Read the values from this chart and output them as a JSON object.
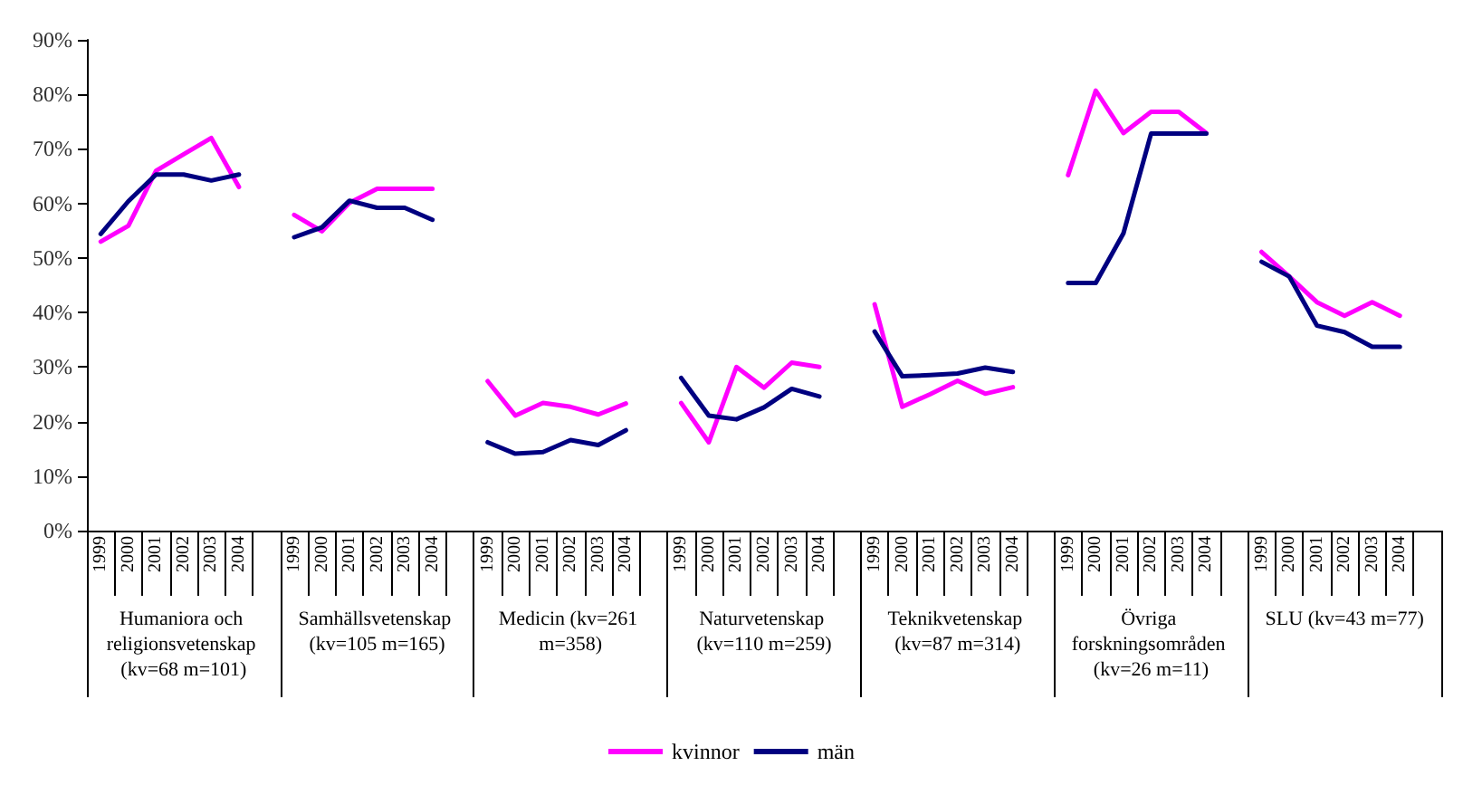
{
  "chart_data": {
    "type": "line",
    "categories": [
      "1999",
      "2000",
      "2001",
      "2002",
      "2003",
      "2004",
      null,
      "1999",
      "2000",
      "2001",
      "2002",
      "2003",
      "2004",
      null,
      "1999",
      "2000",
      "2001",
      "2002",
      "2003",
      "2004",
      null,
      "1999",
      "2000",
      "2001",
      "2002",
      "2003",
      "2004",
      null,
      "1999",
      "2000",
      "2001",
      "2002",
      "2003",
      "2004",
      null,
      "1999",
      "2000",
      "2001",
      "2002",
      "2003",
      "2004",
      null,
      "1999",
      "2000",
      "2001",
      "2002",
      "2003",
      "2004",
      null
    ],
    "annotations": [
      "Humaniora och religionsvetenskap (kv=68 m=101)",
      "Samhällsvetenskap (kv=105 m=165)",
      "Medicin (kv=261 m=358)",
      "Naturvetenskap (kv=110 m=259)",
      "Teknikvetenskap (kv=87 m=314)",
      "Övriga forskningsområden (kv=26 m=11)",
      "SLU (kv=43 m=77)"
    ],
    "series": [
      {
        "name": "kvinnor",
        "color": "#ff00ff",
        "values": [
          53,
          55.9,
          66,
          69,
          72,
          63,
          null,
          57.9,
          54.9,
          60.1,
          62.7,
          62.7,
          62.7,
          null,
          27.4,
          21.1,
          23.4,
          22.7,
          21.3,
          23.3,
          null,
          23.4,
          16.2,
          30,
          26.2,
          30.8,
          30,
          null,
          41.5,
          22.7,
          25,
          27.5,
          25.1,
          26.3,
          null,
          65.2,
          80.7,
          72.9,
          76.8,
          76.8,
          72.9,
          null,
          51.1,
          46.6,
          41.9,
          39.4,
          41.9,
          39.4,
          null
        ]
      },
      {
        "name": "män",
        "color": "#000080",
        "values": [
          54.4,
          60.4,
          65.3,
          65.3,
          64.2,
          65.3,
          null,
          53.8,
          55.6,
          60.5,
          59.2,
          59.2,
          57,
          null,
          16.2,
          14.1,
          14.4,
          16.6,
          15.7,
          18.4,
          null,
          28,
          21.1,
          20.4,
          22.6,
          26,
          24.6,
          null,
          36.5,
          28.3,
          28.5,
          28.8,
          29.9,
          29.1,
          null,
          45.4,
          45.4,
          54.5,
          72.8,
          72.8,
          72.8,
          null,
          49.3,
          46.6,
          37.6,
          36.4,
          33.7,
          33.7,
          null
        ]
      }
    ],
    "ylim": [
      0,
      90
    ],
    "yticks": [
      {
        "value": 0,
        "label": "0%"
      },
      {
        "value": 10,
        "label": "10%"
      },
      {
        "value": 20,
        "label": "20%"
      },
      {
        "value": 30,
        "label": "30%"
      },
      {
        "value": 40,
        "label": "40%"
      },
      {
        "value": 50,
        "label": "50%"
      },
      {
        "value": 60,
        "label": "60%"
      },
      {
        "value": 70,
        "label": "70%"
      },
      {
        "value": 80,
        "label": "80%"
      },
      {
        "value": 90,
        "label": "90%"
      }
    ],
    "grid": false,
    "legend": "bottom",
    "marker": "none",
    "line_style": "solid"
  }
}
